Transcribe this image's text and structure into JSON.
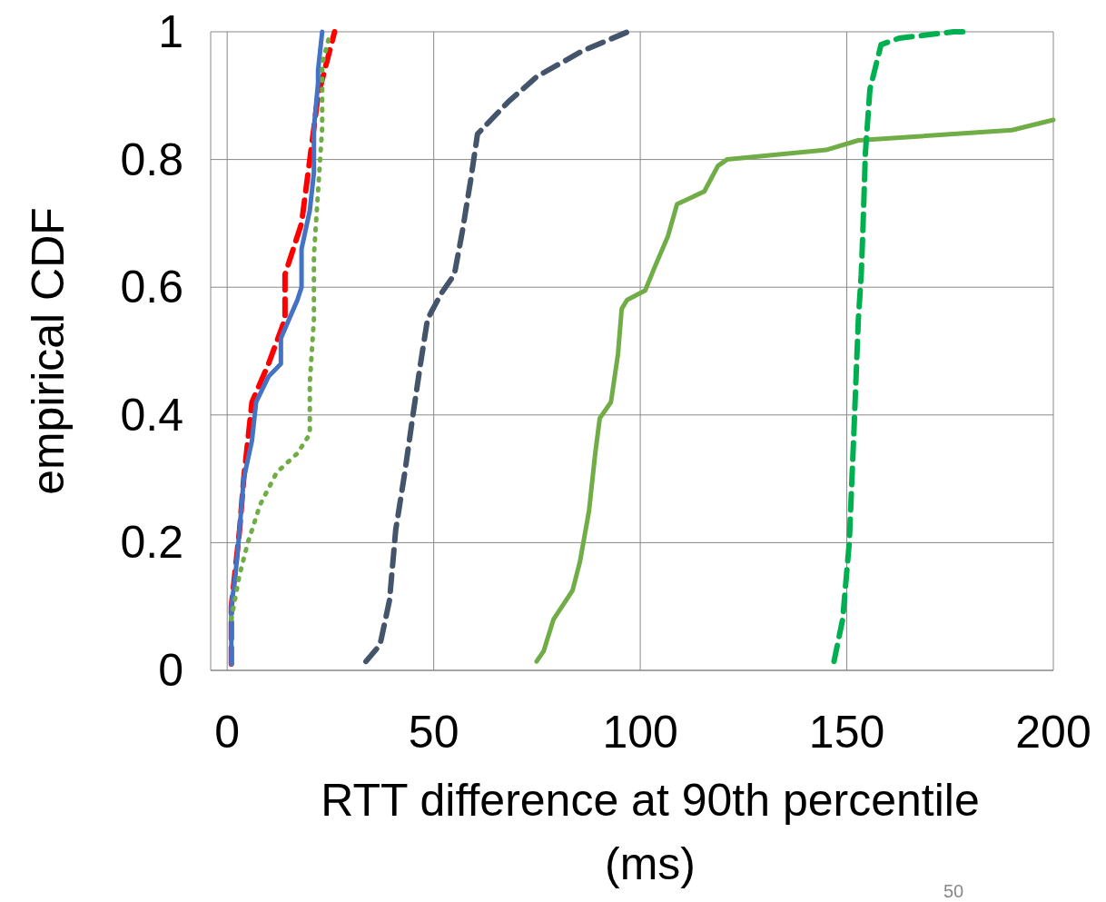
{
  "chart_data": {
    "type": "line",
    "xlabel": "RTT difference at 90th percentile (ms)",
    "ylabel": "empirical CDF",
    "xlim": [
      -4,
      200
    ],
    "xticks": [
      0,
      50,
      100,
      150,
      200
    ],
    "ylim": [
      0,
      1
    ],
    "yticks": [
      0,
      0.2,
      0.4,
      0.6,
      0.8,
      1
    ],
    "grid": true,
    "annotations": [
      "50"
    ],
    "series": [
      {
        "color": "#ff0000",
        "line_style": "dashed",
        "x": [
          1,
          1,
          3,
          4,
          6,
          10,
          14,
          14,
          18,
          20,
          22,
          26
        ],
        "values": [
          0.01,
          0.1,
          0.22,
          0.3,
          0.42,
          0.48,
          0.55,
          0.62,
          0.7,
          0.8,
          0.9,
          1
        ]
      },
      {
        "color": "#4472c4",
        "line_style": "solid",
        "x": [
          1,
          1,
          2,
          3,
          4,
          6,
          7,
          10,
          13,
          13,
          15,
          17,
          18,
          18,
          20,
          21,
          21,
          22,
          22,
          23
        ],
        "values": [
          0.01,
          0.1,
          0.15,
          0.22,
          0.3,
          0.36,
          0.42,
          0.46,
          0.48,
          0.52,
          0.55,
          0.58,
          0.6,
          0.66,
          0.72,
          0.78,
          0.85,
          0.92,
          0.94,
          1
        ]
      },
      {
        "color": "#70ad47",
        "line_style": "dotted",
        "x": [
          1,
          3,
          5,
          8,
          12,
          17,
          20,
          20,
          21,
          21,
          22,
          23,
          23,
          25
        ],
        "values": [
          0.08,
          0.15,
          0.2,
          0.26,
          0.31,
          0.34,
          0.37,
          0.45,
          0.55,
          0.65,
          0.75,
          0.85,
          0.95,
          1
        ]
      },
      {
        "color": "#44546a",
        "line_style": "dashed",
        "x": [
          33.6,
          37,
          39.3,
          40.8,
          43,
          45.2,
          46.8,
          48.5,
          51.8,
          55,
          57,
          59,
          60.6,
          68,
          75,
          86,
          97
        ],
        "values": [
          0.014,
          0.04,
          0.11,
          0.22,
          0.31,
          0.41,
          0.48,
          0.55,
          0.59,
          0.62,
          0.69,
          0.77,
          0.84,
          0.89,
          0.93,
          0.97,
          1
        ]
      },
      {
        "color": "#70ad47",
        "line_style": "solid",
        "x": [
          74.9,
          76.6,
          79,
          83.6,
          85.4,
          87.6,
          89.1,
          90.2,
          92.9,
          94.6,
          95.5,
          96.8,
          101.2,
          103.4,
          106.7,
          108.9,
          115.5,
          118.8,
          121,
          145,
          152.8,
          190,
          200
        ],
        "values": [
          0.014,
          0.03,
          0.08,
          0.125,
          0.17,
          0.25,
          0.34,
          0.395,
          0.42,
          0.495,
          0.566,
          0.58,
          0.595,
          0.63,
          0.68,
          0.73,
          0.75,
          0.79,
          0.8,
          0.815,
          0.83,
          0.846,
          0.862
        ]
      },
      {
        "color": "#00b050",
        "line_style": "dashed",
        "x": [
          146.9,
          149,
          150.6,
          151.7,
          152.8,
          153.5,
          153.9,
          154.5,
          155.6,
          158.3,
          162.7,
          175.8,
          179
        ],
        "values": [
          0.014,
          0.08,
          0.2,
          0.37,
          0.55,
          0.62,
          0.69,
          0.81,
          0.91,
          0.98,
          0.99,
          1,
          1
        ]
      }
    ]
  }
}
